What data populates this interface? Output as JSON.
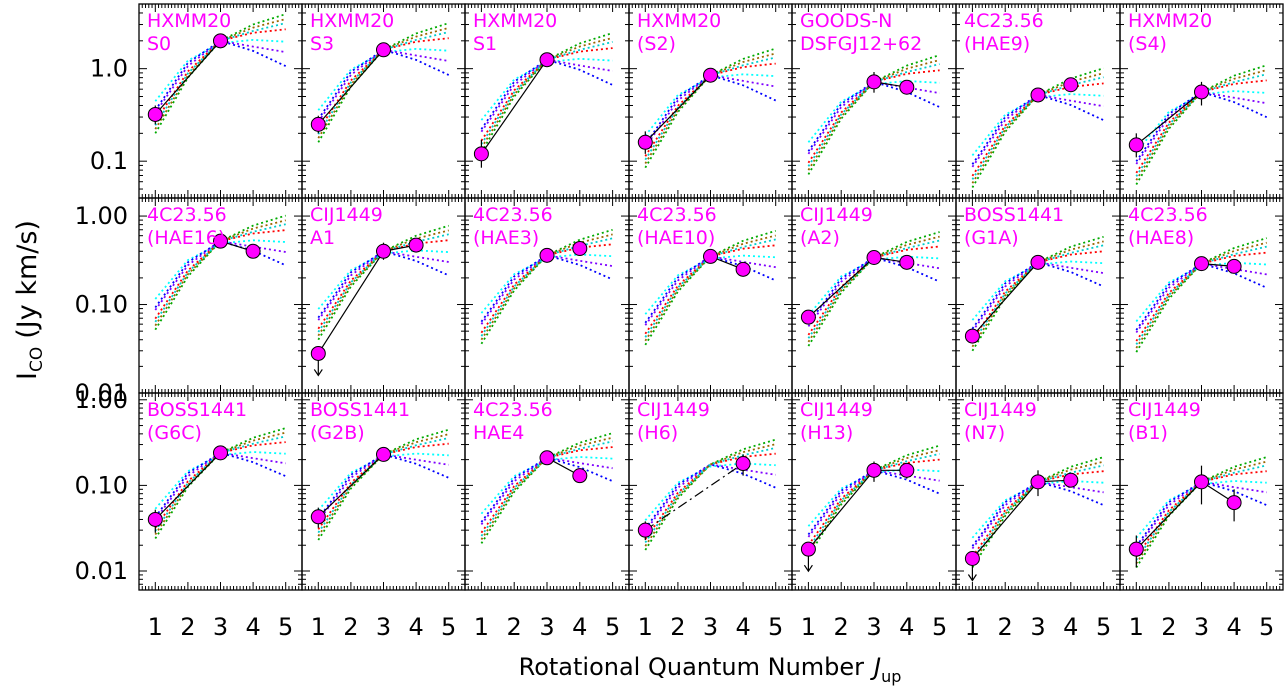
{
  "chart_data": {
    "type": "scatter",
    "xlabel": "Rotational Quantum Number",
    "xlabel_symbol": "J",
    "xlabel_sub": "up",
    "ylabel": "I",
    "ylabel_sub": "CO",
    "ylabel_unit": "(Jy km/s)",
    "x_ticks": [
      "1",
      "2",
      "3",
      "4",
      "5"
    ],
    "xlim": [
      0.5,
      5.5
    ],
    "y_scale": "log",
    "grid": false,
    "marker_color": "#ff00ff",
    "label_color": "#ff00ff",
    "rows": [
      {
        "ylim": [
          0.04,
          5.0
        ],
        "y_ticks": [
          {
            "v": 0.1,
            "label": "0.1"
          },
          {
            "v": 1.0,
            "label": "1.0"
          }
        ]
      },
      {
        "ylim": [
          0.01,
          1.6
        ],
        "y_ticks": [
          {
            "v": 0.01,
            "label": "0.01"
          },
          {
            "v": 0.1,
            "label": "0.10"
          },
          {
            "v": 1.0,
            "label": "1.00"
          }
        ]
      },
      {
        "ylim": [
          0.006,
          1.2
        ],
        "y_ticks": [
          {
            "v": 0.01,
            "label": "0.01"
          },
          {
            "v": 0.1,
            "label": "0.10"
          },
          {
            "v": 1.0,
            "label": "1.00"
          }
        ]
      }
    ],
    "models": [
      {
        "color": "#00ffff",
        "shape": [
          0.2,
          0.55,
          0.85,
          0.92,
          0.88
        ]
      },
      {
        "color": "#0000ff",
        "shape": [
          0.16,
          0.52,
          0.9,
          0.7,
          0.48
        ]
      },
      {
        "color": "#ff0000",
        "shape": [
          0.12,
          0.42,
          0.9,
          1.1,
          1.2
        ]
      },
      {
        "color": "#7f00ff",
        "shape": [
          0.15,
          0.48,
          0.9,
          0.78,
          0.68
        ]
      },
      {
        "color": "#00aa00",
        "shape": [
          0.09,
          0.36,
          0.9,
          1.35,
          1.75
        ]
      },
      {
        "color": "#00cccc",
        "shape": [
          0.11,
          0.4,
          0.9,
          1.15,
          1.4
        ]
      },
      {
        "color": "#996600",
        "shape": [
          0.1,
          0.38,
          0.9,
          1.25,
          1.55
        ]
      }
    ],
    "panels": [
      {
        "row": 0,
        "col": 0,
        "label": [
          "HXMM20",
          "S0"
        ],
        "points": [
          {
            "x": 1,
            "y": 0.32,
            "lo": 0.25,
            "hi": 0.4
          },
          {
            "x": 3,
            "y": 2.0,
            "lo": 1.8,
            "hi": 2.2
          }
        ],
        "line": "solid"
      },
      {
        "row": 0,
        "col": 1,
        "label": [
          "HXMM20",
          "S3"
        ],
        "points": [
          {
            "x": 1,
            "y": 0.25,
            "lo": 0.2,
            "hi": 0.31
          },
          {
            "x": 3,
            "y": 1.6,
            "lo": 1.4,
            "hi": 1.8
          }
        ],
        "line": "solid"
      },
      {
        "row": 0,
        "col": 2,
        "label": [
          "HXMM20",
          "S1"
        ],
        "points": [
          {
            "x": 1,
            "y": 0.12,
            "lo": 0.085,
            "hi": 0.17
          },
          {
            "x": 3,
            "y": 1.25,
            "lo": 1.1,
            "hi": 1.4
          }
        ],
        "line": "solid"
      },
      {
        "row": 0,
        "col": 3,
        "label": [
          "HXMM20",
          "(S2)"
        ],
        "points": [
          {
            "x": 1,
            "y": 0.16,
            "lo": 0.12,
            "hi": 0.21
          },
          {
            "x": 3,
            "y": 0.85,
            "lo": 0.72,
            "hi": 1.0
          }
        ],
        "line": "solid"
      },
      {
        "row": 0,
        "col": 4,
        "label": [
          "GOODS-N",
          "DSFGJ12+62"
        ],
        "points": [
          {
            "x": 3,
            "y": 0.72,
            "lo": 0.55,
            "hi": 0.92
          },
          {
            "x": 4,
            "y": 0.63,
            "lo": 0.55,
            "hi": 0.72
          }
        ],
        "line": "solid"
      },
      {
        "row": 0,
        "col": 5,
        "label": [
          "4C23.56",
          "(HAE9)"
        ],
        "points": [
          {
            "x": 3,
            "y": 0.52,
            "lo": 0.46,
            "hi": 0.58
          },
          {
            "x": 4,
            "y": 0.67,
            "lo": 0.59,
            "hi": 0.76
          }
        ],
        "line": "none"
      },
      {
        "row": 0,
        "col": 6,
        "label": [
          "HXMM20",
          "(S4)"
        ],
        "points": [
          {
            "x": 1,
            "y": 0.15,
            "lo": 0.11,
            "hi": 0.2
          },
          {
            "x": 3,
            "y": 0.56,
            "lo": 0.4,
            "hi": 0.72
          }
        ],
        "line": "solid"
      },
      {
        "row": 1,
        "col": 0,
        "label": [
          "4C23.56",
          "(HAE16)"
        ],
        "points": [
          {
            "x": 3,
            "y": 0.52,
            "lo": 0.46,
            "hi": 0.59
          },
          {
            "x": 4,
            "y": 0.4,
            "lo": 0.36,
            "hi": 0.45
          }
        ],
        "line": "solid"
      },
      {
        "row": 1,
        "col": 1,
        "label": [
          "CIJ1449",
          "A1"
        ],
        "points": [
          {
            "x": 1,
            "y": 0.028,
            "upper": true
          },
          {
            "x": 3,
            "y": 0.4,
            "lo": 0.32,
            "hi": 0.5
          },
          {
            "x": 4,
            "y": 0.47,
            "lo": 0.42,
            "hi": 0.52
          }
        ],
        "line": "solid"
      },
      {
        "row": 1,
        "col": 2,
        "label": [
          "4C23.56",
          "(HAE3)"
        ],
        "points": [
          {
            "x": 3,
            "y": 0.36,
            "lo": 0.33,
            "hi": 0.4
          },
          {
            "x": 4,
            "y": 0.43,
            "lo": 0.39,
            "hi": 0.48
          }
        ],
        "line": "none"
      },
      {
        "row": 1,
        "col": 3,
        "label": [
          "4C23.56",
          "(HAE10)"
        ],
        "points": [
          {
            "x": 3,
            "y": 0.35,
            "lo": 0.32,
            "hi": 0.39
          },
          {
            "x": 4,
            "y": 0.25,
            "lo": 0.21,
            "hi": 0.29
          }
        ],
        "line": "solid"
      },
      {
        "row": 1,
        "col": 4,
        "label": [
          "CIJ1449",
          "(A2)"
        ],
        "points": [
          {
            "x": 1,
            "y": 0.072,
            "lo": 0.06,
            "hi": 0.086
          },
          {
            "x": 3,
            "y": 0.34,
            "lo": 0.31,
            "hi": 0.38
          },
          {
            "x": 4,
            "y": 0.3,
            "lo": 0.26,
            "hi": 0.34
          }
        ],
        "line": "solid"
      },
      {
        "row": 1,
        "col": 5,
        "label": [
          "BOSS1441",
          "(G1A)"
        ],
        "points": [
          {
            "x": 1,
            "y": 0.044,
            "lo": 0.037,
            "hi": 0.052
          },
          {
            "x": 3,
            "y": 0.3,
            "lo": 0.27,
            "hi": 0.33
          }
        ],
        "line": "solid"
      },
      {
        "row": 1,
        "col": 6,
        "label": [
          "4C23.56",
          "(HAE8)"
        ],
        "points": [
          {
            "x": 3,
            "y": 0.29,
            "lo": 0.26,
            "hi": 0.32
          },
          {
            "x": 4,
            "y": 0.27,
            "lo": 0.23,
            "hi": 0.31
          }
        ],
        "line": "solid"
      },
      {
        "row": 2,
        "col": 0,
        "label": [
          "BOSS1441",
          "(G6C)"
        ],
        "points": [
          {
            "x": 1,
            "y": 0.04,
            "lo": 0.028,
            "hi": 0.052
          },
          {
            "x": 3,
            "y": 0.24,
            "lo": 0.22,
            "hi": 0.26
          }
        ],
        "line": "solid"
      },
      {
        "row": 2,
        "col": 1,
        "label": [
          "BOSS1441",
          "(G2B)"
        ],
        "points": [
          {
            "x": 1,
            "y": 0.043,
            "lo": 0.032,
            "hi": 0.055
          },
          {
            "x": 3,
            "y": 0.23,
            "lo": 0.21,
            "hi": 0.25
          }
        ],
        "line": "solid"
      },
      {
        "row": 2,
        "col": 2,
        "label": [
          "4C23.56",
          "HAE4"
        ],
        "points": [
          {
            "x": 3,
            "y": 0.21,
            "lo": 0.19,
            "hi": 0.23
          },
          {
            "x": 4,
            "y": 0.13,
            "lo": 0.11,
            "hi": 0.15
          }
        ],
        "line": "solid"
      },
      {
        "row": 2,
        "col": 3,
        "label": [
          "CIJ1449",
          "(H6)"
        ],
        "points": [
          {
            "x": 1,
            "y": 0.03,
            "lo": 0.023,
            "hi": 0.038
          },
          {
            "x": 4,
            "y": 0.18,
            "lo": 0.13,
            "hi": 0.23
          }
        ],
        "line": "dashdot"
      },
      {
        "row": 2,
        "col": 4,
        "label": [
          "CIJ1449",
          "(H13)"
        ],
        "points": [
          {
            "x": 1,
            "y": 0.018,
            "upper": true
          },
          {
            "x": 3,
            "y": 0.15,
            "lo": 0.11,
            "hi": 0.19
          },
          {
            "x": 4,
            "y": 0.15,
            "lo": 0.12,
            "hi": 0.18
          }
        ],
        "line": "solid"
      },
      {
        "row": 2,
        "col": 5,
        "label": [
          "CIJ1449",
          "(N7)"
        ],
        "points": [
          {
            "x": 1,
            "y": 0.014,
            "upper": true
          },
          {
            "x": 3,
            "y": 0.11,
            "lo": 0.075,
            "hi": 0.15
          },
          {
            "x": 4,
            "y": 0.115,
            "lo": 0.095,
            "hi": 0.14
          }
        ],
        "line": "solid"
      },
      {
        "row": 2,
        "col": 6,
        "label": [
          "CIJ1449",
          "(B1)"
        ],
        "points": [
          {
            "x": 1,
            "y": 0.018,
            "lo": 0.011,
            "hi": 0.026
          },
          {
            "x": 3,
            "y": 0.11,
            "lo": 0.06,
            "hi": 0.17
          },
          {
            "x": 4,
            "y": 0.063,
            "lo": 0.038,
            "hi": 0.09
          }
        ],
        "line": "solid"
      }
    ]
  }
}
